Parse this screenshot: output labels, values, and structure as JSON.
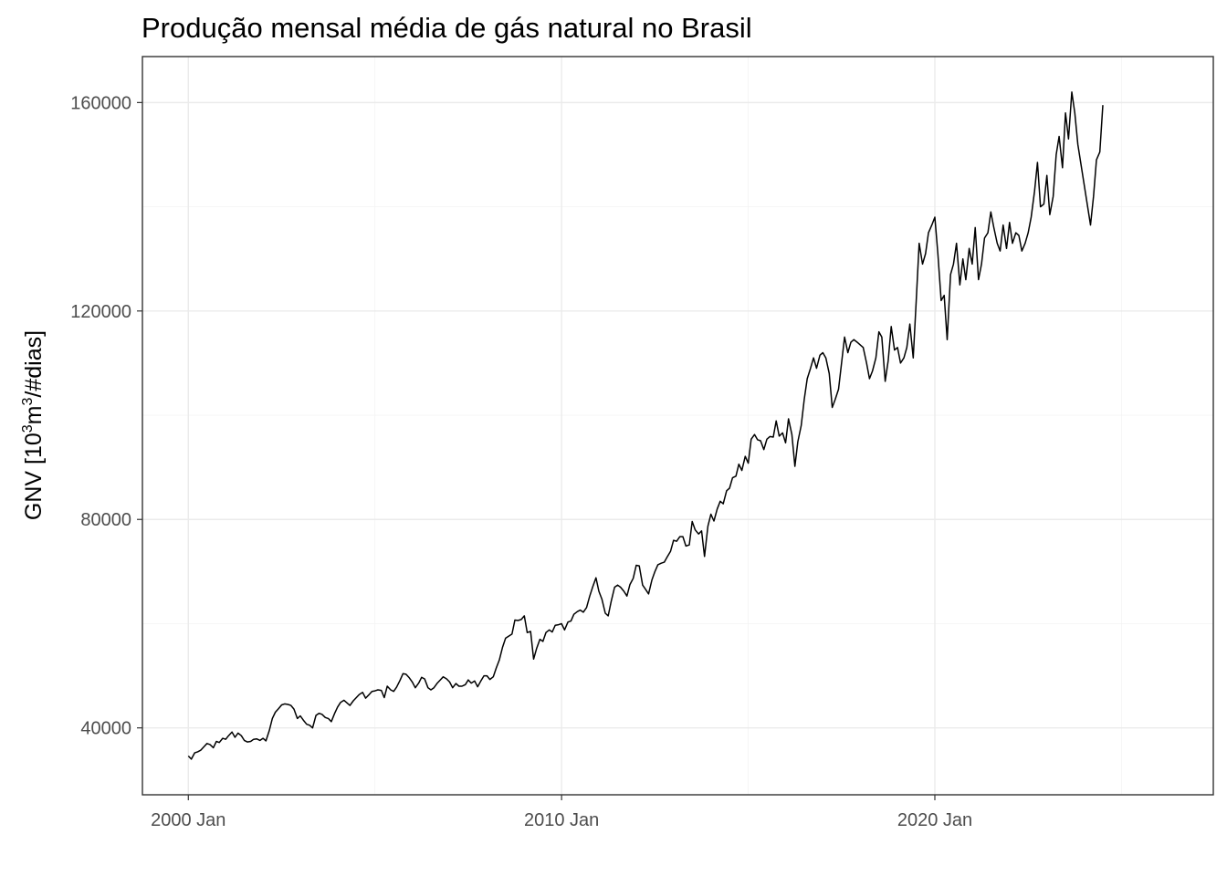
{
  "chart_data": {
    "type": "line",
    "title": "Produção mensal média de gás natural no Brasil",
    "xlabel": "",
    "ylabel": {
      "prefix": "GNV [10",
      "sup1": "3",
      "mid": "m",
      "sup2": "3",
      "suffix": "/#dias]"
    },
    "x_ticks": [
      {
        "year": 2000,
        "label": "2000 Jan"
      },
      {
        "year": 2010,
        "label": "2010 Jan"
      },
      {
        "year": 2020,
        "label": "2020 Jan"
      }
    ],
    "y_ticks": [
      {
        "value": 40000,
        "label": "40000"
      },
      {
        "value": 80000,
        "label": "80000"
      },
      {
        "value": 120000,
        "label": "120000"
      },
      {
        "value": 160000,
        "label": "160000"
      }
    ],
    "xlim": [
      1998.77,
      2027.46
    ],
    "ylim": [
      27160,
      168820
    ],
    "grid": true,
    "legend": "none",
    "colors": {
      "line": "#000000",
      "grid": "#ebebeb",
      "border": "#333333"
    },
    "series": [
      {
        "points": [
          [
            2000.0,
            34600
          ],
          [
            2000.08,
            34000
          ],
          [
            2000.17,
            35200
          ],
          [
            2000.25,
            35400
          ],
          [
            2000.33,
            35700
          ],
          [
            2000.42,
            36400
          ],
          [
            2000.5,
            37000
          ],
          [
            2000.58,
            36800
          ],
          [
            2000.67,
            36200
          ],
          [
            2000.75,
            37400
          ],
          [
            2000.83,
            37200
          ],
          [
            2000.92,
            38000
          ],
          [
            2001.0,
            37800
          ],
          [
            2001.08,
            38500
          ],
          [
            2001.17,
            39200
          ],
          [
            2001.25,
            38200
          ],
          [
            2001.33,
            39000
          ],
          [
            2001.42,
            38500
          ],
          [
            2001.5,
            37600
          ],
          [
            2001.58,
            37300
          ],
          [
            2001.67,
            37400
          ],
          [
            2001.75,
            37800
          ],
          [
            2001.83,
            37900
          ],
          [
            2001.92,
            37600
          ],
          [
            2002.0,
            38000
          ],
          [
            2002.08,
            37500
          ],
          [
            2002.17,
            39500
          ],
          [
            2002.25,
            41800
          ],
          [
            2002.33,
            43000
          ],
          [
            2002.42,
            43700
          ],
          [
            2002.5,
            44400
          ],
          [
            2002.58,
            44600
          ],
          [
            2002.67,
            44500
          ],
          [
            2002.75,
            44300
          ],
          [
            2002.83,
            43600
          ],
          [
            2002.92,
            41800
          ],
          [
            2003.0,
            42300
          ],
          [
            2003.08,
            41500
          ],
          [
            2003.17,
            40700
          ],
          [
            2003.25,
            40500
          ],
          [
            2003.33,
            40000
          ],
          [
            2003.42,
            42400
          ],
          [
            2003.5,
            42800
          ],
          [
            2003.58,
            42600
          ],
          [
            2003.67,
            42000
          ],
          [
            2003.75,
            41800
          ],
          [
            2003.83,
            41200
          ],
          [
            2003.92,
            42800
          ],
          [
            2004.0,
            44000
          ],
          [
            2004.08,
            44900
          ],
          [
            2004.17,
            45300
          ],
          [
            2004.25,
            44800
          ],
          [
            2004.33,
            44300
          ],
          [
            2004.42,
            45200
          ],
          [
            2004.5,
            45800
          ],
          [
            2004.58,
            46400
          ],
          [
            2004.67,
            46800
          ],
          [
            2004.75,
            45700
          ],
          [
            2004.83,
            46300
          ],
          [
            2004.92,
            47000
          ],
          [
            2005.0,
            47100
          ],
          [
            2005.08,
            47300
          ],
          [
            2005.17,
            47200
          ],
          [
            2005.25,
            45800
          ],
          [
            2005.33,
            48000
          ],
          [
            2005.42,
            47300
          ],
          [
            2005.5,
            47000
          ],
          [
            2005.58,
            47800
          ],
          [
            2005.67,
            49100
          ],
          [
            2005.75,
            50400
          ],
          [
            2005.83,
            50300
          ],
          [
            2005.92,
            49600
          ],
          [
            2006.0,
            48800
          ],
          [
            2006.08,
            47700
          ],
          [
            2006.17,
            48600
          ],
          [
            2006.25,
            49700
          ],
          [
            2006.33,
            49400
          ],
          [
            2006.42,
            47700
          ],
          [
            2006.5,
            47300
          ],
          [
            2006.58,
            47700
          ],
          [
            2006.67,
            48600
          ],
          [
            2006.75,
            49200
          ],
          [
            2006.83,
            49800
          ],
          [
            2006.92,
            49400
          ],
          [
            2007.0,
            48800
          ],
          [
            2007.08,
            47700
          ],
          [
            2007.17,
            48500
          ],
          [
            2007.25,
            48000
          ],
          [
            2007.33,
            48000
          ],
          [
            2007.42,
            48300
          ],
          [
            2007.5,
            49200
          ],
          [
            2007.58,
            48600
          ],
          [
            2007.67,
            49000
          ],
          [
            2007.75,
            47900
          ],
          [
            2007.83,
            48900
          ],
          [
            2007.92,
            50000
          ],
          [
            2008.0,
            50000
          ],
          [
            2008.08,
            49300
          ],
          [
            2008.17,
            49800
          ],
          [
            2008.25,
            51500
          ],
          [
            2008.33,
            53000
          ],
          [
            2008.42,
            55500
          ],
          [
            2008.5,
            57200
          ],
          [
            2008.58,
            57600
          ],
          [
            2008.67,
            58000
          ],
          [
            2008.75,
            60700
          ],
          [
            2008.83,
            60600
          ],
          [
            2008.92,
            60800
          ],
          [
            2009.0,
            61500
          ],
          [
            2009.08,
            58300
          ],
          [
            2009.17,
            58500
          ],
          [
            2009.25,
            53200
          ],
          [
            2009.33,
            55200
          ],
          [
            2009.42,
            57000
          ],
          [
            2009.5,
            56600
          ],
          [
            2009.58,
            58300
          ],
          [
            2009.67,
            58800
          ],
          [
            2009.75,
            58400
          ],
          [
            2009.83,
            59700
          ],
          [
            2009.92,
            59800
          ],
          [
            2010.0,
            60000
          ],
          [
            2010.08,
            58800
          ],
          [
            2010.17,
            60300
          ],
          [
            2010.25,
            60500
          ],
          [
            2010.33,
            61800
          ],
          [
            2010.42,
            62300
          ],
          [
            2010.5,
            62600
          ],
          [
            2010.58,
            62200
          ],
          [
            2010.67,
            63100
          ],
          [
            2010.75,
            65200
          ],
          [
            2010.83,
            67000
          ],
          [
            2010.92,
            68800
          ],
          [
            2011.0,
            66200
          ],
          [
            2011.08,
            64700
          ],
          [
            2011.17,
            62000
          ],
          [
            2011.25,
            61500
          ],
          [
            2011.33,
            64300
          ],
          [
            2011.42,
            67000
          ],
          [
            2011.5,
            67400
          ],
          [
            2011.58,
            67000
          ],
          [
            2011.67,
            66200
          ],
          [
            2011.75,
            65300
          ],
          [
            2011.83,
            67500
          ],
          [
            2011.92,
            68700
          ],
          [
            2012.0,
            71200
          ],
          [
            2012.08,
            71100
          ],
          [
            2012.17,
            67400
          ],
          [
            2012.25,
            66600
          ],
          [
            2012.33,
            65700
          ],
          [
            2012.42,
            68400
          ],
          [
            2012.5,
            70000
          ],
          [
            2012.58,
            71300
          ],
          [
            2012.67,
            71600
          ],
          [
            2012.75,
            71800
          ],
          [
            2012.83,
            72800
          ],
          [
            2012.92,
            73900
          ],
          [
            2013.0,
            76000
          ],
          [
            2013.08,
            75800
          ],
          [
            2013.17,
            76700
          ],
          [
            2013.25,
            76700
          ],
          [
            2013.33,
            74900
          ],
          [
            2013.42,
            75100
          ],
          [
            2013.5,
            79600
          ],
          [
            2013.58,
            78000
          ],
          [
            2013.67,
            77200
          ],
          [
            2013.75,
            77800
          ],
          [
            2013.83,
            72900
          ],
          [
            2013.92,
            78700
          ],
          [
            2014.0,
            81000
          ],
          [
            2014.08,
            79700
          ],
          [
            2014.17,
            82000
          ],
          [
            2014.25,
            83500
          ],
          [
            2014.33,
            83000
          ],
          [
            2014.42,
            85500
          ],
          [
            2014.5,
            86000
          ],
          [
            2014.58,
            88000
          ],
          [
            2014.67,
            88300
          ],
          [
            2014.75,
            90600
          ],
          [
            2014.83,
            89400
          ],
          [
            2014.92,
            92100
          ],
          [
            2015.0,
            90800
          ],
          [
            2015.08,
            95400
          ],
          [
            2015.17,
            96300
          ],
          [
            2015.25,
            95300
          ],
          [
            2015.33,
            95100
          ],
          [
            2015.42,
            93400
          ],
          [
            2015.5,
            95400
          ],
          [
            2015.58,
            95900
          ],
          [
            2015.67,
            95800
          ],
          [
            2015.75,
            98900
          ],
          [
            2015.83,
            96000
          ],
          [
            2015.92,
            96600
          ],
          [
            2016.0,
            94700
          ],
          [
            2016.08,
            99300
          ],
          [
            2016.17,
            96300
          ],
          [
            2016.25,
            90200
          ],
          [
            2016.33,
            94900
          ],
          [
            2016.42,
            98000
          ],
          [
            2016.5,
            103000
          ],
          [
            2016.58,
            107000
          ],
          [
            2016.67,
            109000
          ],
          [
            2016.75,
            111000
          ],
          [
            2016.83,
            109000
          ],
          [
            2016.92,
            111500
          ],
          [
            2017.0,
            112000
          ],
          [
            2017.08,
            111000
          ],
          [
            2017.17,
            108000
          ],
          [
            2017.25,
            101500
          ],
          [
            2017.33,
            103000
          ],
          [
            2017.42,
            105000
          ],
          [
            2017.5,
            110000
          ],
          [
            2017.58,
            115000
          ],
          [
            2017.67,
            112000
          ],
          [
            2017.75,
            114000
          ],
          [
            2017.83,
            114500
          ],
          [
            2017.92,
            114000
          ],
          [
            2018.0,
            113500
          ],
          [
            2018.08,
            113000
          ],
          [
            2018.17,
            110000
          ],
          [
            2018.25,
            107000
          ],
          [
            2018.33,
            108500
          ],
          [
            2018.42,
            111000
          ],
          [
            2018.5,
            116000
          ],
          [
            2018.58,
            115000
          ],
          [
            2018.67,
            106500
          ],
          [
            2018.75,
            110500
          ],
          [
            2018.83,
            117000
          ],
          [
            2018.92,
            112500
          ],
          [
            2019.0,
            113000
          ],
          [
            2019.08,
            110000
          ],
          [
            2019.17,
            111000
          ],
          [
            2019.25,
            113000
          ],
          [
            2019.33,
            117500
          ],
          [
            2019.42,
            111000
          ],
          [
            2019.5,
            122000
          ],
          [
            2019.58,
            133000
          ],
          [
            2019.67,
            129000
          ],
          [
            2019.75,
            131000
          ],
          [
            2019.83,
            135000
          ],
          [
            2019.92,
            136500
          ],
          [
            2020.0,
            138000
          ],
          [
            2020.08,
            131000
          ],
          [
            2020.17,
            122000
          ],
          [
            2020.25,
            123000
          ],
          [
            2020.33,
            114500
          ],
          [
            2020.42,
            127000
          ],
          [
            2020.5,
            129000
          ],
          [
            2020.58,
            133000
          ],
          [
            2020.67,
            125000
          ],
          [
            2020.75,
            130000
          ],
          [
            2020.83,
            126000
          ],
          [
            2020.92,
            132000
          ],
          [
            2021.0,
            129000
          ],
          [
            2021.08,
            136000
          ],
          [
            2021.17,
            126000
          ],
          [
            2021.25,
            129000
          ],
          [
            2021.33,
            134000
          ],
          [
            2021.42,
            135000
          ],
          [
            2021.5,
            139000
          ],
          [
            2021.58,
            136000
          ],
          [
            2021.67,
            133000
          ],
          [
            2021.75,
            131500
          ],
          [
            2021.83,
            136500
          ],
          [
            2021.92,
            132000
          ],
          [
            2022.0,
            137000
          ],
          [
            2022.08,
            133000
          ],
          [
            2022.17,
            135000
          ],
          [
            2022.25,
            134500
          ],
          [
            2022.33,
            131500
          ],
          [
            2022.42,
            133000
          ],
          [
            2022.5,
            135000
          ],
          [
            2022.58,
            138000
          ],
          [
            2022.67,
            143000
          ],
          [
            2022.75,
            148500
          ],
          [
            2022.83,
            140000
          ],
          [
            2022.92,
            140500
          ],
          [
            2023.0,
            146000
          ],
          [
            2023.08,
            138500
          ],
          [
            2023.17,
            142000
          ],
          [
            2023.25,
            150000
          ],
          [
            2023.33,
            153500
          ],
          [
            2023.42,
            147500
          ],
          [
            2023.5,
            158000
          ],
          [
            2023.58,
            153000
          ],
          [
            2023.67,
            162000
          ],
          [
            2023.75,
            158000
          ],
          [
            2023.83,
            152000
          ],
          [
            2024.17,
            136500
          ],
          [
            2024.25,
            142000
          ],
          [
            2024.33,
            149000
          ],
          [
            2024.42,
            150500
          ],
          [
            2024.5,
            159500
          ]
        ]
      }
    ]
  }
}
